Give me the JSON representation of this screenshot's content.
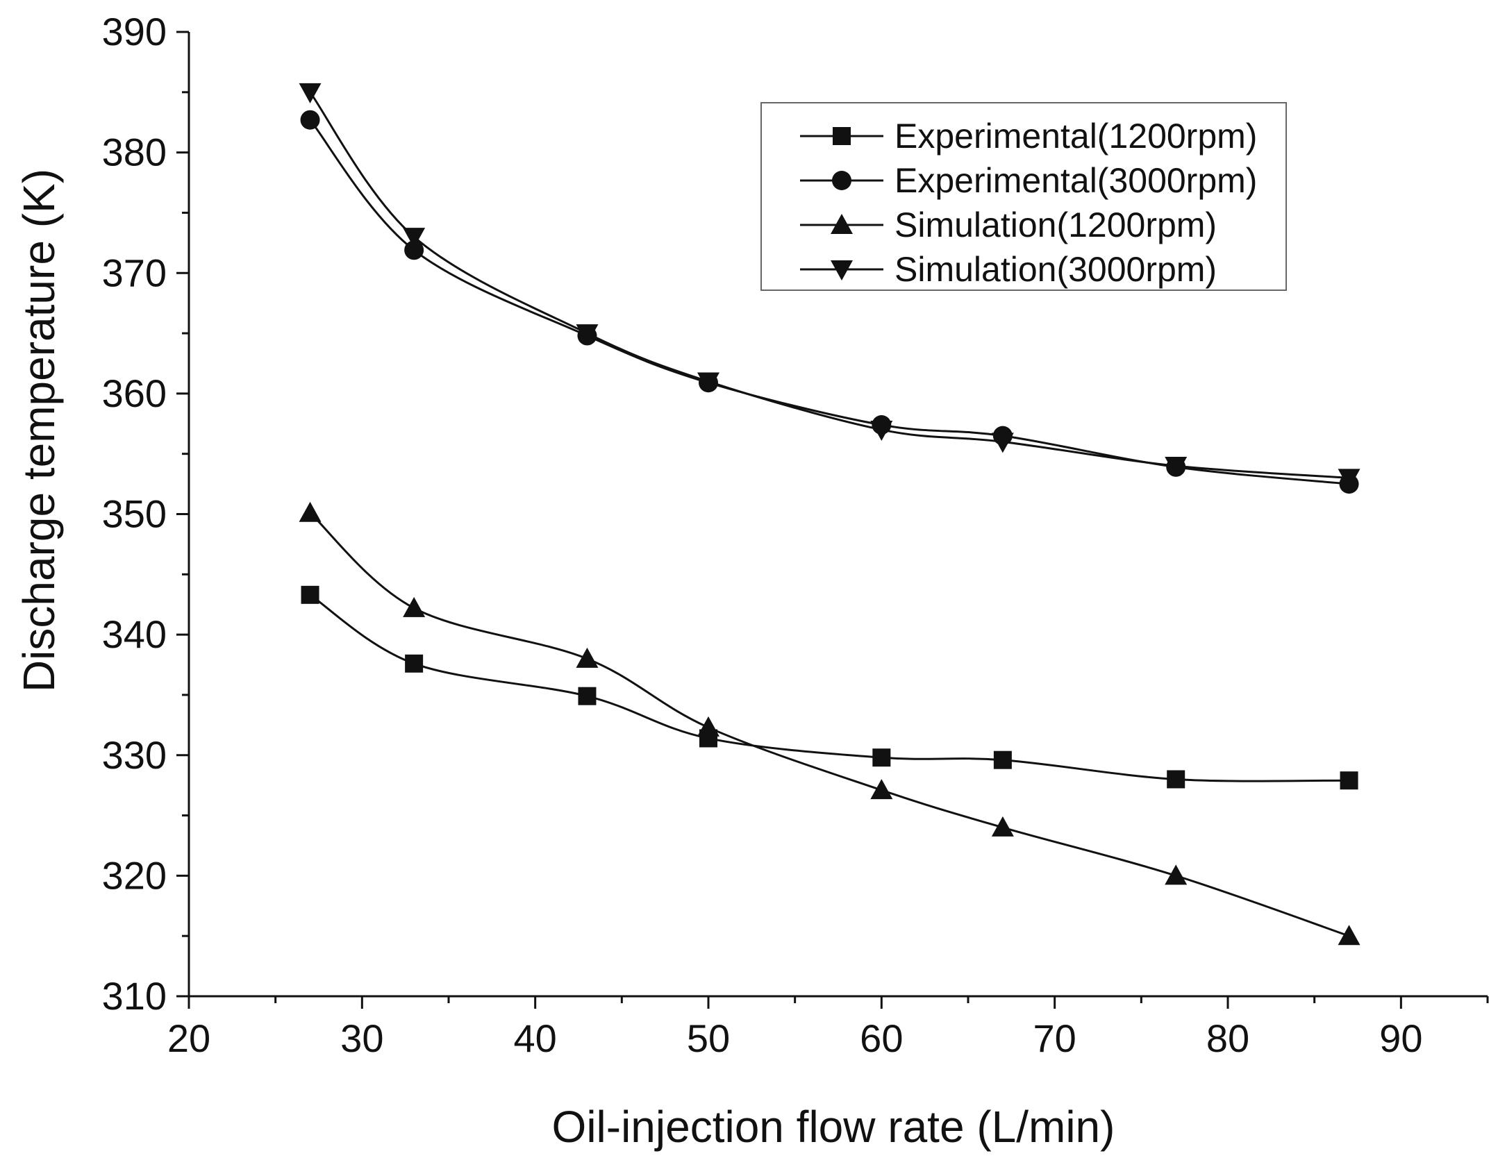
{
  "chart_data": {
    "type": "line",
    "title": "",
    "xlabel": "Oil-injection flow rate (L/min)",
    "ylabel": "Discharge temperature (K)",
    "xlim": [
      20,
      95
    ],
    "ylim": [
      310,
      390
    ],
    "x_ticks": [
      20,
      30,
      40,
      50,
      60,
      70,
      80,
      90
    ],
    "y_ticks": [
      310,
      320,
      330,
      340,
      350,
      360,
      370,
      380,
      390
    ],
    "grid": false,
    "legend_position": "top-right",
    "x": [
      27,
      33,
      43,
      50,
      60,
      67,
      77,
      87
    ],
    "series": [
      {
        "name": "Experimental(1200rpm)",
        "marker": "square",
        "values": [
          343.3,
          337.6,
          334.9,
          331.4,
          329.8,
          329.6,
          328.0,
          327.9
        ]
      },
      {
        "name": "Experimental(3000rpm)",
        "marker": "circle",
        "values": [
          382.7,
          371.9,
          364.8,
          360.9,
          357.4,
          356.5,
          353.9,
          352.5
        ]
      },
      {
        "name": "Simulation(1200rpm)",
        "marker": "triangle-up",
        "values": [
          350.1,
          342.2,
          338.0,
          332.3,
          327.1,
          324.0,
          320.0,
          315.0
        ]
      },
      {
        "name": "Simulation(3000rpm)",
        "marker": "triangle-down",
        "values": [
          385.0,
          373.0,
          365.0,
          361.0,
          357.0,
          356.0,
          354.0,
          353.0
        ]
      }
    ]
  }
}
